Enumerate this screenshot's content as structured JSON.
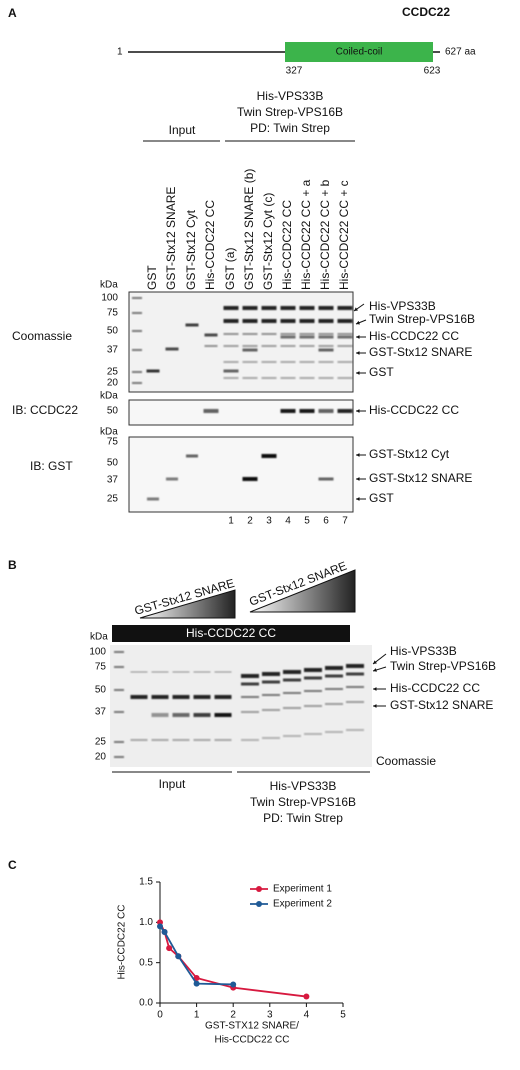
{
  "panel_a": {
    "letter": "A",
    "protein": "CCDC22",
    "domain": "Coiled-coil",
    "start": "1",
    "end": "627 aa",
    "domain_start": "327",
    "domain_end": "623",
    "pulldown_header": [
      "His-VPS33B",
      "Twin Strep-VPS16B",
      "PD: Twin Strep"
    ],
    "input_label": "Input",
    "lanes": [
      "GST",
      "GST-Stx12 SNARE",
      "GST-Stx12 Cyt",
      "His-CCDC22 CC",
      "GST (a)",
      "GST-Stx12 SNARE (b)",
      "GST-Stx12 Cyt (c)",
      "His-CCDC22 CC",
      "His-CCDC22 CC + a",
      "His-CCDC22 CC + b",
      "His-CCDC22 CC + c"
    ],
    "kda": "kDa",
    "coomassie": {
      "label": "Coomassie",
      "markers": [
        100,
        75,
        50,
        37,
        25,
        20
      ],
      "bands": [
        "His-VPS33B",
        "Twin Strep-VPS16B",
        "His-CCDC22 CC",
        "GST-Stx12 SNARE",
        "GST"
      ]
    },
    "ib_ccdc22": {
      "label": "IB: CCDC22",
      "markers": [
        50
      ],
      "bands": [
        "His-CCDC22 CC"
      ]
    },
    "ib_gst": {
      "label": "IB: GST",
      "markers": [
        75,
        50,
        37,
        25
      ],
      "bands": [
        "GST-Stx12 Cyt",
        "GST-Stx12 SNARE",
        "GST"
      ]
    },
    "lane_numbers": [
      1,
      2,
      3,
      4,
      5,
      6,
      7
    ]
  },
  "panel_b": {
    "letter": "B",
    "gradient_labels": [
      "GST-Stx12 SNARE",
      "GST-Stx12 SNARE"
    ],
    "bar_label": "His-CCDC22 CC",
    "kda": "kDa",
    "markers": [
      100,
      75,
      50,
      37,
      25,
      20
    ],
    "bands": [
      "His-VPS33B",
      "Twin Strep-VPS16B",
      "His-CCDC22 CC",
      "GST-Stx12 SNARE"
    ],
    "stain": "Coomassie",
    "input_label": "Input",
    "pulldown_header": [
      "His-VPS33B",
      "Twin Strep-VPS16B",
      "PD: Twin Strep"
    ]
  },
  "panel_c": {
    "letter": "C",
    "chart_data": {
      "type": "line",
      "y_label": "His-CCDC22 CC",
      "x_label": [
        "GST-STX12 SNARE/",
        "His-CCDC22 CC"
      ],
      "xlim": [
        0,
        5
      ],
      "xticks": [
        0,
        1,
        2,
        3,
        4,
        5
      ],
      "ylim": [
        0,
        1.5
      ],
      "yticks": [
        {
          "value": 0,
          "label": "0.0"
        },
        {
          "value": 0.5,
          "label": "0.5"
        },
        {
          "value": 1,
          "label": "1.0"
        },
        {
          "value": 1.5,
          "label": "1.5"
        }
      ],
      "series": [
        {
          "name": "Experiment 1",
          "color": "#d7193f",
          "x": [
            0,
            0.125,
            0.25,
            0.5,
            1,
            2,
            4
          ],
          "values": [
            1.0,
            0.88,
            0.68,
            0.58,
            0.31,
            0.19,
            0.08
          ]
        },
        {
          "name": "Experiment 2",
          "color": "#1f5a96",
          "x": [
            0,
            0.125,
            0.5,
            1,
            2
          ],
          "values": [
            0.95,
            0.88,
            0.58,
            0.24,
            0.23
          ]
        }
      ]
    }
  }
}
